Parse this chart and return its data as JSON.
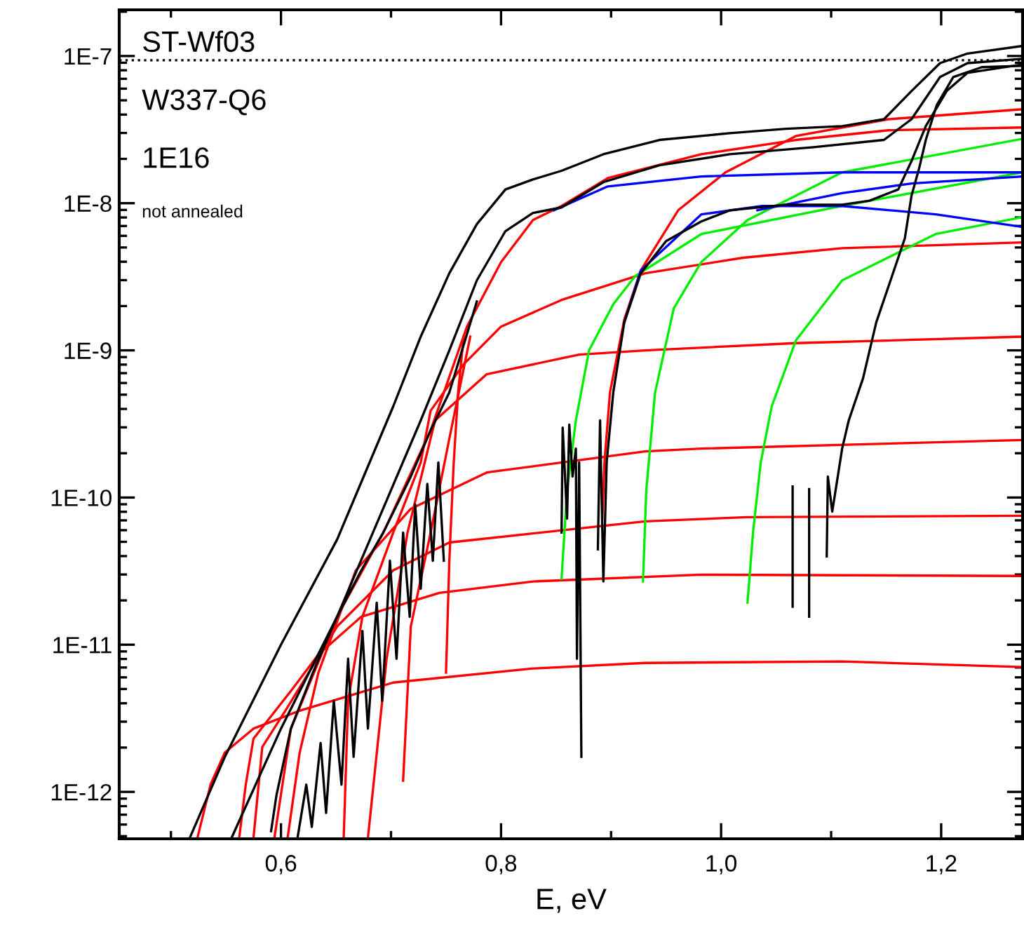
{
  "chart_data": {
    "type": "line",
    "xlabel": "E, eV",
    "annotations": [
      "ST-Wf03",
      "W337-Q6",
      "1E16",
      "not annealed"
    ],
    "xlim": [
      0.453,
      1.274
    ],
    "ylim": [
      4.8e-13,
      2.06e-07
    ],
    "log": "y",
    "grid": false,
    "legend": false,
    "marker": "none",
    "line_style": "solid",
    "xticks": [
      {
        "value": 0.5,
        "label": null
      },
      {
        "value": 0.6,
        "label": "0,6"
      },
      {
        "value": 0.7,
        "label": null
      },
      {
        "value": 0.8,
        "label": "0,8"
      },
      {
        "value": 0.9,
        "label": null
      },
      {
        "value": 1.0,
        "label": "1,0"
      },
      {
        "value": 1.1,
        "label": null
      },
      {
        "value": 1.2,
        "label": "1,2"
      }
    ],
    "yticks": [
      {
        "value": 1e-12,
        "label": "1E-12"
      },
      {
        "value": 1e-11,
        "label": "1E-11"
      },
      {
        "value": 1e-10,
        "label": "1E-10"
      },
      {
        "value": 1e-09,
        "label": "1E-9"
      },
      {
        "value": 1e-08,
        "label": "1E-8"
      },
      {
        "value": 1e-07,
        "label": "1E-7"
      }
    ],
    "ref_lines": [
      {
        "axis": "y",
        "value": 9.36e-08,
        "color": "#000000",
        "line_style": "dotted"
      }
    ],
    "series": [
      {
        "color": "#ff0000",
        "x": [
          0.594,
          0.609,
          0.651,
          0.693,
          0.736,
          0.769,
          0.8,
          0.829,
          0.855,
          0.897,
          0.982,
          1.068,
          1.152,
          1.274
        ],
        "values": [
          4.85e-13,
          2.69e-12,
          1.55e-11,
          5.78e-11,
          2.86e-10,
          1.45e-09,
          3.98e-09,
          7.69e-09,
          9.57e-09,
          1.48e-08,
          2.15e-08,
          2.69e-08,
          3.13e-08,
          3.27e-08
        ]
      },
      {
        "color": "#ff0000",
        "x": [
          0.892,
          0.894,
          0.899,
          0.912,
          0.927,
          0.961,
          1.004,
          1.068,
          1.152,
          1.274
        ],
        "values": [
          7.2e-11,
          1.73e-10,
          5.18e-10,
          1.62e-09,
          3.49e-09,
          8.95e-09,
          1.62e-08,
          2.86e-08,
          3.72e-08,
          4.35e-08
        ]
      },
      {
        "color": "#ff0000",
        "x": [
          0.524,
          0.536,
          0.549,
          0.575,
          0.617,
          0.702,
          0.829,
          0.931,
          1.11,
          1.274
        ],
        "values": [
          4.85e-13,
          1.12e-12,
          1.85e-12,
          2.69e-12,
          3.56e-12,
          5.53e-12,
          6.89e-12,
          7.52e-12,
          7.69e-12,
          7.05e-12
        ]
      },
      {
        "color": "#ff0000",
        "x": [
          0.562,
          0.568,
          0.575,
          0.609,
          0.634,
          0.673,
          0.744,
          0.829,
          0.982,
          1.274
        ],
        "values": [
          4.85e-13,
          1.12e-12,
          2.3e-12,
          4.85e-12,
          8.58e-12,
          1.55e-11,
          2.25e-11,
          2.69e-11,
          2.99e-11,
          2.93e-11
        ]
      },
      {
        "color": "#ff0000",
        "x": [
          0.575,
          0.583,
          0.604,
          0.651,
          0.702,
          0.753,
          0.931,
          1.024,
          1.274
        ],
        "values": [
          4.85e-13,
          2.02e-12,
          3.56e-12,
          1.33e-11,
          3.2e-11,
          4.95e-11,
          6.89e-11,
          7.36e-11,
          7.52e-11
        ]
      },
      {
        "color": "#ff0000",
        "x": [
          0.606,
          0.617,
          0.634,
          0.668,
          0.718,
          0.787,
          0.931,
          0.982,
          1.274
        ],
        "values": [
          4.85e-13,
          1.85e-12,
          6.46e-12,
          3.2e-11,
          8.39e-11,
          1.48e-10,
          2.06e-10,
          2.15e-10,
          2.46e-10
        ]
      },
      {
        "color": "#ff0000",
        "x": [
          0.657,
          0.661,
          0.674,
          0.702,
          0.727,
          0.736,
          0.766,
          0.8,
          0.855,
          0.931,
          1.02,
          1.11,
          1.274
        ],
        "values": [
          4.85e-13,
          4.16e-12,
          1.55e-11,
          5.78e-11,
          1.73e-10,
          3.89e-10,
          8.04e-10,
          1.45e-09,
          2.2e-09,
          3.34e-09,
          4.26e-09,
          4.95e-09,
          5.41e-09
        ]
      },
      {
        "color": "#ff0000",
        "x": [
          0.679,
          0.696,
          0.715,
          0.74,
          0.787,
          0.871,
          0.931,
          1.068,
          1.274
        ],
        "values": [
          4.85e-13,
          8.03e-12,
          5.78e-11,
          3.34e-10,
          6.89e-10,
          9.36e-10,
          1e-09,
          1.12e-09,
          1.24e-09
        ]
      },
      {
        "color": "#ff0000",
        "x": [
          0.711,
          0.718,
          0.736,
          0.753,
          0.772
        ],
        "values": [
          1.19e-12,
          1.33e-11,
          5.78e-11,
          2.51e-10,
          1.24e-09
        ]
      },
      {
        "color": "#ff0000",
        "x": [
          0.75,
          0.753,
          0.757,
          0.761,
          0.766
        ],
        "values": [
          6.46e-12,
          3.72e-11,
          1.73e-10,
          5.18e-10,
          1.24e-09
        ]
      },
      {
        "color": "#00ee00",
        "x": [
          0.855,
          0.86,
          0.868,
          0.88,
          0.902,
          0.922,
          0.982,
          1.11,
          1.274
        ],
        "values": [
          2.81e-11,
          1.12e-10,
          3.34e-10,
          1e-09,
          2.06e-09,
          3.2e-09,
          6.17e-09,
          9.57e-09,
          1.62e-08
        ]
      },
      {
        "color": "#00ee00",
        "x": [
          0.929,
          0.932,
          0.94,
          0.957,
          0.982,
          1.024,
          1.11,
          1.274
        ],
        "values": [
          2.69e-11,
          1.12e-10,
          5.18e-10,
          1.93e-09,
          3.98e-09,
          7.69e-09,
          1.62e-08,
          2.74e-08
        ]
      },
      {
        "color": "#00ee00",
        "x": [
          1.024,
          1.029,
          1.036,
          1.046,
          1.068,
          1.11,
          1.195,
          1.274
        ],
        "values": [
          1.93e-11,
          5.78e-11,
          1.73e-10,
          4.16e-10,
          1.17e-09,
          2.99e-09,
          6.17e-09,
          8.04e-09
        ]
      },
      {
        "color": "#0000ff",
        "x": [
          0.848,
          0.897,
          0.982,
          1.11,
          1.274
        ],
        "values": [
          8.95e-09,
          1.3e-08,
          1.52e-08,
          1.62e-08,
          1.62e-08
        ]
      },
      {
        "color": "#0000ff",
        "x": [
          0.912,
          0.927,
          0.982,
          1.037,
          1.11,
          1.195,
          1.274
        ],
        "values": [
          1.55e-09,
          3.49e-09,
          8.39e-09,
          9.57e-09,
          9.57e-09,
          8.39e-09,
          6.89e-09
        ]
      },
      {
        "color": "#0000ff",
        "x": [
          1.033,
          1.11,
          1.173,
          1.274
        ],
        "values": [
          8.95e-09,
          1.17e-08,
          1.36e-08,
          1.52e-08
        ]
      },
      {
        "color": "#000000",
        "x": [
          0.517,
          0.549,
          0.6,
          0.651,
          0.702,
          0.727,
          0.753,
          0.778,
          0.804,
          0.829,
          0.855,
          0.893,
          0.944,
          1.008,
          1.059,
          1.11,
          1.148,
          1.173,
          1.199,
          1.224,
          1.274
        ],
        "values": [
          4.85e-13,
          1.73e-12,
          1e-11,
          5.18e-11,
          4.16e-10,
          1.24e-09,
          3.34e-09,
          7.2e-09,
          1.24e-08,
          1.45e-08,
          1.66e-08,
          2.15e-08,
          2.69e-08,
          2.99e-08,
          3.2e-08,
          3.34e-08,
          3.72e-08,
          5.78e-08,
          8.95e-08,
          1.04e-07,
          1.17e-07
        ]
      },
      {
        "color": "#000000",
        "x": [
          0.555,
          0.6,
          0.651,
          0.689,
          0.727,
          0.753,
          0.778,
          0.804,
          0.829,
          0.855,
          0.893,
          0.944,
          1.008,
          1.084,
          1.148,
          1.173,
          1.199,
          1.224,
          1.274
        ],
        "values": [
          4.85e-13,
          2.69e-12,
          1.55e-11,
          7.2e-11,
          3.34e-10,
          1e-09,
          2.99e-09,
          6.46e-09,
          8.58e-09,
          9.36e-09,
          1.39e-08,
          1.81e-08,
          2.15e-08,
          2.4e-08,
          2.69e-08,
          3.72e-08,
          7.2e-08,
          8.95e-08,
          9.57e-08
        ]
      },
      {
        "color": "#000000",
        "x": [
          0.888,
          0.89,
          0.893,
          0.896,
          0.902,
          0.912,
          0.927,
          0.95,
          0.982,
          1.008,
          1.059,
          1.11,
          1.135,
          1.161,
          1.173,
          1.186,
          1.205,
          1.224,
          1.274
        ],
        "values": [
          4.45e-11,
          3.34e-10,
          2.69e-11,
          1.73e-10,
          5.18e-10,
          1.55e-09,
          3.34e-09,
          5.53e-09,
          7.52e-09,
          8.95e-09,
          9.77e-09,
          9.77e-09,
          1.04e-08,
          1.24e-08,
          1.93e-08,
          3.34e-08,
          5.78e-08,
          7.69e-08,
          8.77e-08
        ]
      },
      {
        "color": "#000000",
        "x": [
          1.096,
          1.097,
          1.101,
          1.11,
          1.116,
          1.129,
          1.141,
          1.154,
          1.167,
          1.173,
          1.18,
          1.186,
          1.196,
          1.211,
          1.237,
          1.274
        ],
        "values": [
          3.98e-11,
          1.39e-10,
          8.03e-11,
          2.15e-10,
          3.34e-10,
          6.46e-10,
          1.55e-09,
          2.99e-09,
          5.78e-09,
          1.12e-08,
          1.73e-08,
          2.69e-08,
          4.64e-08,
          7.2e-08,
          8.4e-08,
          8.58e-08
        ]
      },
      {
        "color": "#000000",
        "x": [
          0.591,
          0.596,
          0.609,
          0.629,
          0.651,
          0.673,
          0.693,
          0.718,
          0.736,
          0.753,
          0.778
        ],
        "values": [
          5.41e-13,
          9.57e-13,
          2.69e-12,
          6.46e-12,
          1.55e-11,
          3.2e-11,
          5.78e-11,
          1.39e-10,
          2.86e-10,
          5.18e-10,
          2.15e-09
        ]
      },
      {
        "color": "#000000",
        "x": [
          0.615,
          0.623,
          0.628,
          0.636,
          0.641,
          0.648,
          0.655,
          0.661,
          0.666,
          0.674,
          0.679,
          0.687,
          0.692,
          0.699,
          0.705,
          0.711,
          0.717,
          0.722,
          0.727,
          0.733,
          0.738,
          0.743,
          0.748
        ],
        "values": [
          4.85e-13,
          1.12e-12,
          5.78e-13,
          2.15e-12,
          7.2e-13,
          4.16e-12,
          1.12e-12,
          8.03e-12,
          1.73e-12,
          1.24e-11,
          2.69e-12,
          1.93e-11,
          4.16e-12,
          3.72e-11,
          8.03e-12,
          5.78e-11,
          1.55e-11,
          8.95e-11,
          2.4e-11,
          1.24e-10,
          3.72e-11,
          1.73e-10,
          3.72e-11
        ]
      },
      {
        "color": "#000000",
        "x": [
          0.855,
          0.856,
          0.86,
          0.862,
          0.865,
          0.868,
          0.869,
          0.871,
          0.873
        ],
        "values": [
          5.78e-11,
          2.99e-10,
          7.2e-11,
          3.13e-10,
          1.39e-10,
          2.15e-10,
          8.03e-12,
          1.73e-10,
          1.73e-12
        ]
      },
      {
        "color": "#000000",
        "x": [
          1.065,
          1.065,
          1.072,
          1.08,
          1.08
        ],
        "values": [
          1.19e-10,
          1.81e-11,
          null,
          1.14e-10,
          1.55e-11
        ]
      }
    ]
  }
}
